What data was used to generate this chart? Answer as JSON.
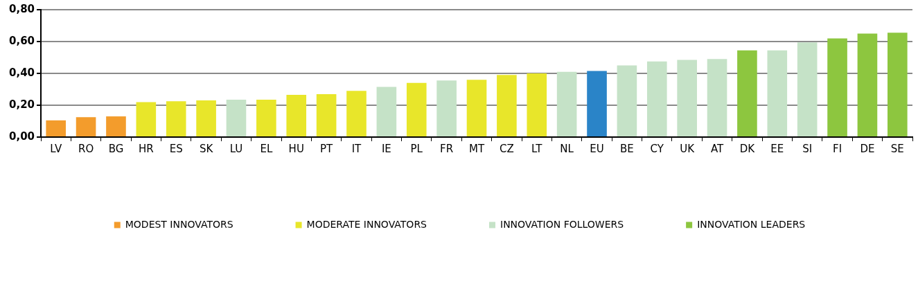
{
  "chart_data": {
    "type": "bar",
    "categories": [
      "LV",
      "RO",
      "BG",
      "HR",
      "ES",
      "SK",
      "LU",
      "EL",
      "HU",
      "PT",
      "IT",
      "IE",
      "PL",
      "FR",
      "MT",
      "CZ",
      "LT",
      "NL",
      "EU",
      "BE",
      "CY",
      "UK",
      "AT",
      "DK",
      "EE",
      "SI",
      "FI",
      "DE",
      "SE"
    ],
    "series": [
      {
        "name": "MODEST INNOVATORS",
        "color": "#f39c2c",
        "values": [
          0.105,
          0.125,
          0.13,
          null,
          null,
          null,
          null,
          null,
          null,
          null,
          null,
          null,
          null,
          null,
          null,
          null,
          null,
          null,
          null,
          null,
          null,
          null,
          null,
          null,
          null,
          null,
          null,
          null,
          null
        ]
      },
      {
        "name": "MODERATE INNOVATORS",
        "color": "#e8e62a",
        "values": [
          null,
          null,
          null,
          0.22,
          0.225,
          0.23,
          null,
          0.235,
          0.265,
          0.27,
          0.29,
          null,
          0.34,
          null,
          0.36,
          0.39,
          0.4,
          null,
          null,
          null,
          null,
          null,
          null,
          null,
          null,
          null,
          null,
          null,
          null
        ]
      },
      {
        "name": "INNOVATION FOLLOWERS",
        "color": "#c5e2c7",
        "values": [
          null,
          null,
          null,
          null,
          null,
          null,
          0.235,
          null,
          null,
          null,
          null,
          0.315,
          null,
          0.355,
          null,
          null,
          null,
          0.41,
          null,
          0.45,
          0.475,
          0.485,
          0.49,
          null,
          0.545,
          0.595,
          null,
          null,
          null
        ]
      },
      {
        "name": "INNOVATION LEADERS",
        "color": "#8dc63f",
        "values": [
          null,
          null,
          null,
          null,
          null,
          null,
          null,
          null,
          null,
          null,
          null,
          null,
          null,
          null,
          null,
          null,
          null,
          null,
          null,
          null,
          null,
          null,
          null,
          0.545,
          null,
          null,
          0.62,
          0.65,
          0.655
        ]
      },
      {
        "color": "#2a84c8",
        "values": [
          null,
          null,
          null,
          null,
          null,
          null,
          null,
          null,
          null,
          null,
          null,
          null,
          null,
          null,
          null,
          null,
          null,
          null,
          0.415,
          null,
          null,
          null,
          null,
          null,
          null,
          null,
          null,
          null,
          null
        ]
      }
    ],
    "ylim": [
      0,
      0.8
    ],
    "yticks": [
      {
        "value": 0,
        "label": "0,00"
      },
      {
        "value": 0.2,
        "label": "0,20"
      },
      {
        "value": 0.4,
        "label": "0,40"
      },
      {
        "value": 0.6,
        "label": "0,60"
      },
      {
        "value": 0.8,
        "label": "0,80"
      }
    ],
    "grid": "y",
    "legend": "bottom"
  }
}
